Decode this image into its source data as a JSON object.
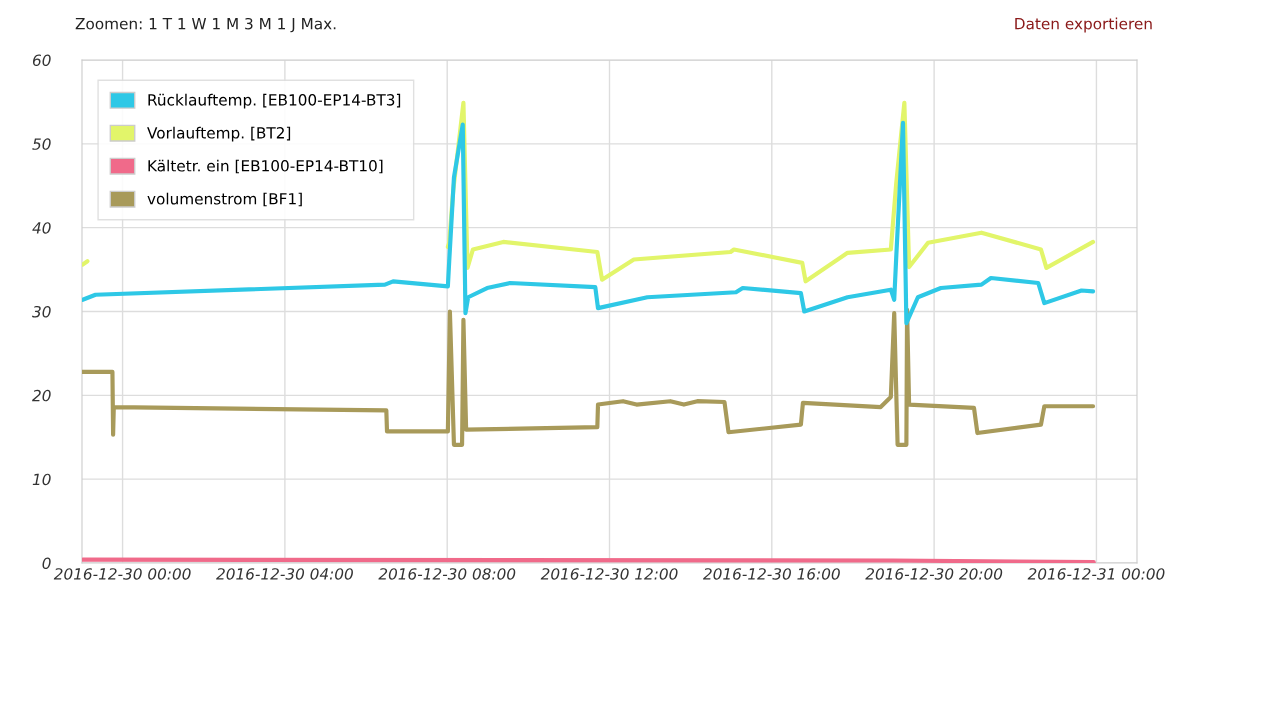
{
  "chart_data": {
    "type": "line",
    "annotations": [
      "Zoomen: 1 T 1 W 1 M 3 M 1 J Max.",
      "Daten exportieren"
    ],
    "series": [
      {
        "name": "Rücklauftemp. [EB100-EP14-BT3]",
        "color": "#2ec8e6",
        "x": [
          "2016-12-29T23:01",
          "2016-12-29T23:20",
          "2016-12-30T06:28",
          "2016-12-30T06:40",
          "2016-12-30T08:01",
          "2016-12-30T08:03",
          "2016-12-30T08:10",
          "2016-12-30T08:23",
          "2016-12-30T08:27",
          "2016-12-30T08:31",
          "2016-12-30T08:59",
          "2016-12-30T09:33",
          "2016-12-30T11:39",
          "2016-12-30T11:43",
          "2016-12-30T12:56",
          "2016-12-30T15:07",
          "2016-12-30T15:17",
          "2016-12-30T16:43",
          "2016-12-30T16:48",
          "2016-12-30T17:52",
          "2016-12-30T18:56",
          "2016-12-30T19:01",
          "2016-12-30T19:04",
          "2016-12-30T19:14",
          "2016-12-30T19:19",
          "2016-12-30T19:36",
          "2016-12-30T20:10",
          "2016-12-30T21:10",
          "2016-12-30T21:24",
          "2016-12-30T22:34",
          "2016-12-30T22:43",
          "2016-12-30T23:38",
          "2016-12-30T23:55"
        ],
        "values": [
          31.4,
          32.0,
          33.2,
          33.6,
          33.0,
          36.0,
          46.0,
          52.3,
          29.8,
          31.7,
          32.8,
          33.4,
          32.9,
          30.4,
          31.7,
          32.3,
          32.8,
          32.2,
          30.0,
          31.7,
          32.6,
          31.4,
          36.5,
          52.5,
          28.6,
          31.7,
          32.8,
          33.2,
          34.0,
          33.4,
          31.0,
          32.5,
          32.4
        ]
      },
      {
        "name": "Vorlauftemp. [BT2]",
        "color": "#e2f56a",
        "x": [
          "2016-12-29T23:01",
          "2016-12-29T23:08",
          "2016-12-30T00:00",
          "2016-12-30T08:01",
          "2016-12-30T08:03",
          "2016-12-30T08:09",
          "2016-12-30T08:24",
          "2016-12-30T08:30",
          "2016-12-30T08:38",
          "2016-12-30T09:23",
          "2016-12-30T11:42",
          "2016-12-30T11:49",
          "2016-12-30T12:36",
          "2016-12-30T14:59",
          "2016-12-30T15:04",
          "2016-12-30T16:45",
          "2016-12-30T16:50",
          "2016-12-30T17:52",
          "2016-12-30T18:56",
          "2016-12-30T19:04",
          "2016-12-30T19:16",
          "2016-12-30T19:23",
          "2016-12-30T19:51",
          "2016-12-30T21:10",
          "2016-12-30T22:38",
          "2016-12-30T22:46",
          "2016-12-30T23:55"
        ],
        "values": [
          35.6,
          36.0,
          null,
          37.7,
          38.2,
          44.5,
          54.9,
          35.2,
          37.4,
          38.3,
          37.1,
          33.8,
          36.2,
          37.1,
          37.4,
          35.8,
          33.6,
          37.0,
          37.4,
          45.3,
          54.9,
          35.3,
          38.2,
          39.4,
          37.4,
          35.2,
          38.3
        ]
      },
      {
        "name": "Kältetr. ein [EB100-EP14-BT10]",
        "color": "#f06a8a",
        "x": [
          "2016-12-29T23:01",
          "2016-12-30T19:00",
          "2016-12-30T23:56"
        ],
        "values": [
          0.4,
          0.3,
          0.1
        ]
      },
      {
        "name": "volumenstrom [BF1]",
        "color": "#a89a5a",
        "x": [
          "2016-12-29T23:01",
          "2016-12-29T23:45",
          "2016-12-29T23:46",
          "2016-12-29T23:47",
          "2016-12-30T06:30",
          "2016-12-30T06:31",
          "2016-12-30T08:01",
          "2016-12-30T08:04",
          "2016-12-30T08:10",
          "2016-12-30T08:22",
          "2016-12-30T08:24",
          "2016-12-30T08:28",
          "2016-12-30T11:42",
          "2016-12-30T11:43",
          "2016-12-30T12:20",
          "2016-12-30T12:40",
          "2016-12-30T13:30",
          "2016-12-30T13:50",
          "2016-12-30T14:10",
          "2016-12-30T14:50",
          "2016-12-30T14:56",
          "2016-12-30T16:43",
          "2016-12-30T16:46",
          "2016-12-30T18:41",
          "2016-12-30T18:56",
          "2016-12-30T19:01",
          "2016-12-30T19:06",
          "2016-12-30T19:19",
          "2016-12-30T19:20",
          "2016-12-30T19:23",
          "2016-12-30T20:59",
          "2016-12-30T21:04",
          "2016-12-30T22:38",
          "2016-12-30T22:43",
          "2016-12-30T23:55"
        ],
        "values": [
          22.8,
          22.8,
          15.3,
          18.6,
          18.2,
          15.7,
          15.7,
          30.0,
          14.1,
          14.1,
          29.0,
          15.9,
          16.2,
          18.9,
          19.3,
          18.9,
          19.3,
          18.9,
          19.3,
          19.2,
          15.6,
          16.5,
          19.1,
          18.6,
          19.8,
          29.8,
          14.1,
          14.1,
          30.2,
          18.9,
          18.5,
          15.5,
          16.5,
          18.7,
          18.7
        ]
      }
    ],
    "xlim": [
      "2016-12-29T23:00",
      "2016-12-31T01:00"
    ],
    "xticks": [
      {
        "value": "2016-12-30T00:00",
        "label": "2016-12-30 00:00"
      },
      {
        "value": "2016-12-30T04:00",
        "label": "2016-12-30 04:00"
      },
      {
        "value": "2016-12-30T08:00",
        "label": "2016-12-30 08:00"
      },
      {
        "value": "2016-12-30T12:00",
        "label": "2016-12-30 12:00"
      },
      {
        "value": "2016-12-30T16:00",
        "label": "2016-12-30 16:00"
      },
      {
        "value": "2016-12-30T20:00",
        "label": "2016-12-30 20:00"
      },
      {
        "value": "2016-12-31T00:00",
        "label": "2016-12-31 00:00"
      }
    ],
    "ylim": [
      0,
      60
    ],
    "yticks": [
      0,
      10,
      20,
      30,
      40,
      50,
      60
    ],
    "grid": true,
    "legend": "top left",
    "marker": "none",
    "line_style": "solid"
  }
}
